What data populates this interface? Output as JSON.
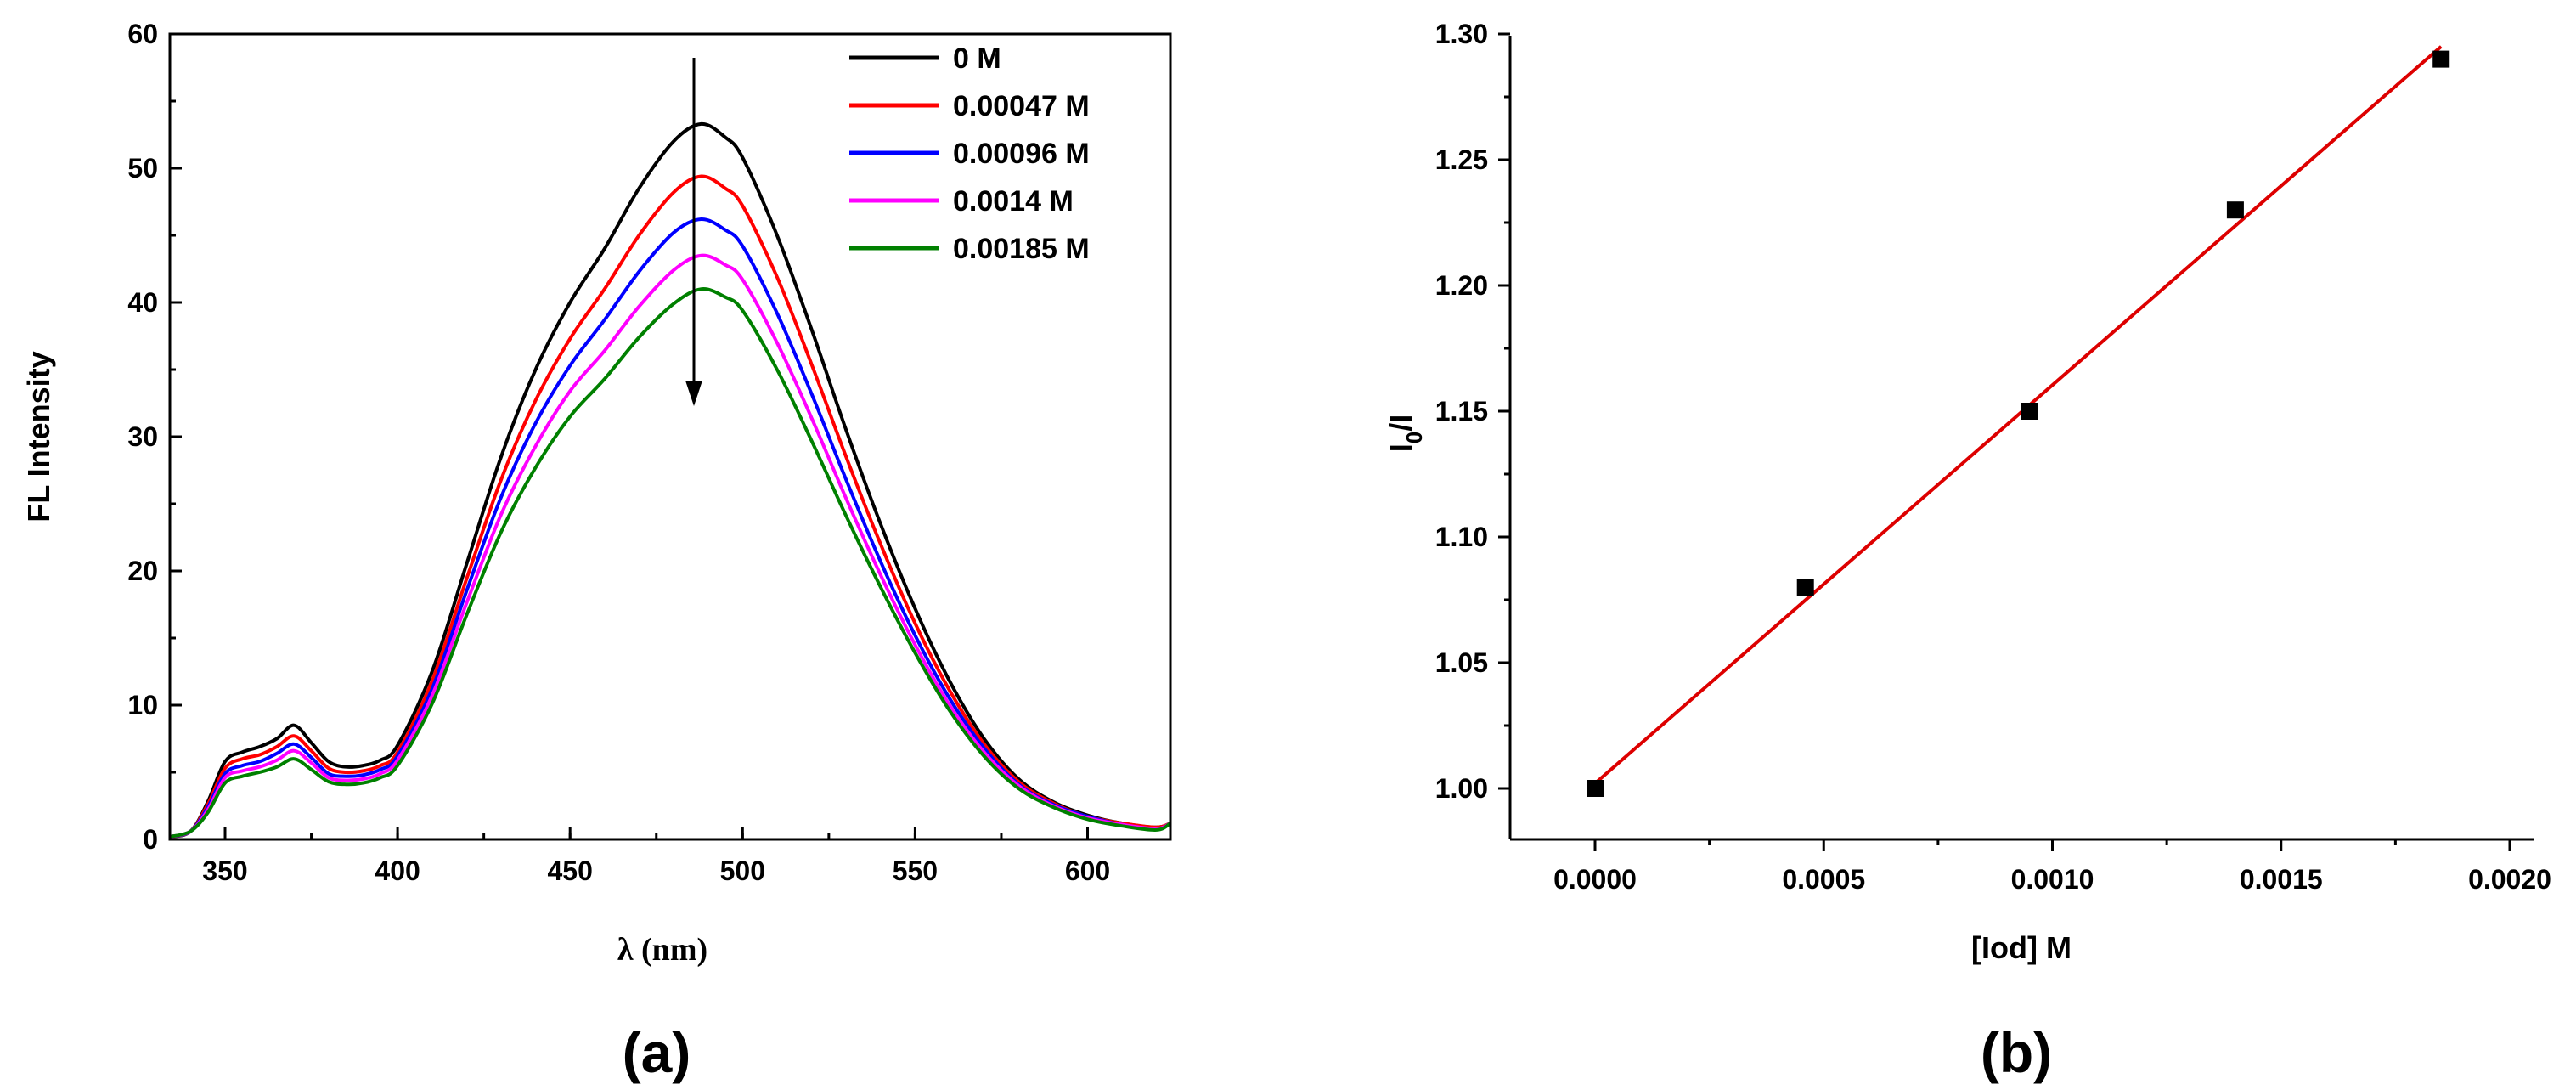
{
  "chart_data": [
    {
      "type": "line",
      "panel_label": "(a)",
      "xlabel": "λ (nm)",
      "ylabel": "FL Intensity",
      "xlim": [
        334,
        624
      ],
      "ylim": [
        0,
        60
      ],
      "xticks": [
        350,
        400,
        450,
        500,
        550,
        600
      ],
      "yticks": [
        0,
        10,
        20,
        30,
        40,
        50,
        60
      ],
      "legend_position": "top-right",
      "annotation": "downward arrow at peak (~488 nm) indicating decreasing intensity with increasing iodide concentration",
      "series": [
        {
          "name": "0 M",
          "color": "#000000",
          "x": [
            334,
            340,
            345,
            350,
            355,
            360,
            365,
            370,
            375,
            380,
            385,
            390,
            395,
            400,
            410,
            420,
            430,
            440,
            450,
            460,
            470,
            480,
            488,
            495,
            500,
            510,
            520,
            530,
            540,
            550,
            560,
            570,
            580,
            590,
            600,
            610,
            620,
            624
          ],
          "y": [
            0.2,
            0.6,
            2.8,
            5.8,
            6.5,
            6.9,
            7.5,
            8.5,
            7.2,
            5.8,
            5.4,
            5.5,
            5.9,
            7.0,
            12.5,
            20.5,
            28.5,
            35.0,
            40.0,
            44.0,
            48.5,
            52.0,
            53.3,
            52.3,
            50.8,
            45.0,
            38.0,
            30.5,
            23.5,
            17.2,
            11.8,
            7.5,
            4.5,
            2.8,
            1.8,
            1.2,
            0.9,
            1.2
          ]
        },
        {
          "name": "0.00047 M",
          "color": "#ff0000",
          "x": [
            334,
            340,
            345,
            350,
            355,
            360,
            365,
            370,
            375,
            380,
            385,
            390,
            395,
            400,
            410,
            420,
            430,
            440,
            450,
            460,
            470,
            480,
            488,
            495,
            500,
            510,
            520,
            530,
            540,
            550,
            560,
            570,
            580,
            590,
            600,
            610,
            620,
            624
          ],
          "y": [
            0.2,
            0.6,
            2.6,
            5.3,
            6.0,
            6.3,
            6.9,
            7.7,
            6.6,
            5.3,
            5.0,
            5.1,
            5.5,
            6.5,
            11.8,
            19.4,
            26.8,
            32.7,
            37.3,
            41.0,
            45.0,
            48.2,
            49.4,
            48.5,
            47.2,
            41.9,
            35.4,
            28.5,
            22.0,
            16.1,
            11.1,
            7.1,
            4.3,
            2.7,
            1.7,
            1.2,
            0.9,
            1.2
          ]
        },
        {
          "name": "0.00096 M",
          "color": "#0000ff",
          "x": [
            334,
            340,
            345,
            350,
            355,
            360,
            365,
            370,
            375,
            380,
            385,
            390,
            395,
            400,
            410,
            420,
            430,
            440,
            450,
            460,
            470,
            480,
            488,
            495,
            500,
            510,
            520,
            530,
            540,
            550,
            560,
            570,
            580,
            590,
            600,
            610,
            620,
            624
          ],
          "y": [
            0.2,
            0.6,
            2.4,
            4.9,
            5.5,
            5.8,
            6.4,
            7.1,
            6.1,
            4.9,
            4.7,
            4.8,
            5.2,
            6.2,
            11.2,
            18.5,
            25.5,
            31.0,
            35.3,
            38.7,
            42.3,
            45.2,
            46.2,
            45.4,
            44.2,
            39.2,
            33.2,
            26.8,
            20.7,
            15.2,
            10.5,
            6.8,
            4.1,
            2.6,
            1.7,
            1.1,
            0.8,
            1.2
          ]
        },
        {
          "name": "0.0014 M",
          "color": "#ff00ff",
          "x": [
            334,
            340,
            345,
            350,
            355,
            360,
            365,
            370,
            375,
            380,
            385,
            390,
            395,
            400,
            410,
            420,
            430,
            440,
            450,
            460,
            470,
            480,
            488,
            495,
            500,
            510,
            520,
            530,
            540,
            550,
            560,
            570,
            580,
            590,
            600,
            610,
            620,
            624
          ],
          "y": [
            0.2,
            0.6,
            2.2,
            4.6,
            5.1,
            5.4,
            5.9,
            6.6,
            5.7,
            4.6,
            4.4,
            4.5,
            4.9,
            5.9,
            10.7,
            17.6,
            24.2,
            29.3,
            33.4,
            36.4,
            39.7,
            42.4,
            43.5,
            42.8,
            41.7,
            37.0,
            31.4,
            25.4,
            19.7,
            14.5,
            10.0,
            6.5,
            4.0,
            2.5,
            1.6,
            1.1,
            0.8,
            1.2
          ]
        },
        {
          "name": "0.00185 M",
          "color": "#008000",
          "x": [
            334,
            340,
            345,
            350,
            355,
            360,
            365,
            370,
            375,
            380,
            385,
            390,
            395,
            400,
            410,
            420,
            430,
            440,
            450,
            460,
            470,
            480,
            488,
            495,
            500,
            510,
            520,
            530,
            540,
            550,
            560,
            570,
            580,
            590,
            600,
            610,
            620,
            624
          ],
          "y": [
            0.2,
            0.6,
            2.0,
            4.2,
            4.7,
            5.0,
            5.4,
            6.0,
            5.2,
            4.3,
            4.1,
            4.2,
            4.6,
            5.5,
            10.1,
            16.7,
            22.9,
            27.7,
            31.5,
            34.3,
            37.4,
            39.9,
            41.0,
            40.4,
            39.4,
            35.0,
            29.7,
            24.1,
            18.8,
            13.9,
            9.6,
            6.2,
            3.8,
            2.4,
            1.5,
            1.0,
            0.7,
            1.2
          ]
        }
      ]
    },
    {
      "type": "scatter",
      "panel_label": "(b)",
      "xlabel": "[Iod] M",
      "ylabel_main": "I",
      "ylabel_sub": "0",
      "ylabel_tail": "/I",
      "xlim": [
        -0.00011,
        0.002
      ],
      "ylim": [
        0.975,
        1.3
      ],
      "xticks": [
        "0.0000",
        "0.0005",
        "0.0010",
        "0.0015",
        "0.0020"
      ],
      "yticks": [
        "1.00",
        "1.05",
        "1.10",
        "1.15",
        "1.20",
        "1.25",
        "1.30"
      ],
      "points": {
        "color": "#000000",
        "x": [
          0.0,
          0.00046,
          0.00095,
          0.0014,
          0.00185
        ],
        "y": [
          1.0,
          1.08,
          1.15,
          1.23,
          1.29
        ]
      },
      "fit": {
        "type": "linear",
        "color": "#dd0000",
        "x": [
          0.0,
          0.00185
        ],
        "y": [
          1.002,
          1.295
        ]
      }
    }
  ]
}
